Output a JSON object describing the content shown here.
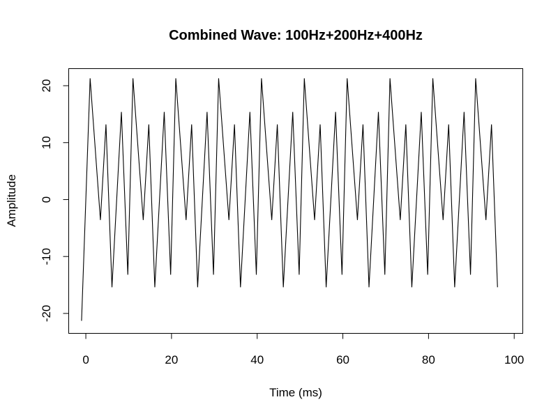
{
  "chart_data": {
    "type": "line",
    "title": "Combined Wave: 100Hz+200Hz+400Hz",
    "xlabel": "Time (ms)",
    "ylabel": "Amplitude",
    "xlim": [
      -4,
      102
    ],
    "ylim": [
      -23.5,
      23
    ],
    "x_ticks": [
      0,
      20,
      40,
      60,
      80,
      100
    ],
    "x_tick_labels": [
      "0",
      "20",
      "40",
      "60",
      "80",
      "100"
    ],
    "y_ticks": [
      -20,
      -10,
      0,
      10,
      20
    ],
    "y_tick_labels": [
      "-20",
      "-10",
      "0",
      "10",
      "20"
    ],
    "grid": false,
    "legend": "none",
    "line_color": "#000000",
    "period_ms": 10,
    "series": [
      {
        "cycle_x_offsets": [
          0,
          2.4,
          3.7,
          5.1,
          7.3,
          8.8,
          10
        ],
        "cycle_values": [
          21.3,
          -3.6,
          13.2,
          -15.4,
          15.4,
          -13.2,
          -21.3
        ],
        "x_start": 1,
        "x_end": 98
      }
    ]
  }
}
